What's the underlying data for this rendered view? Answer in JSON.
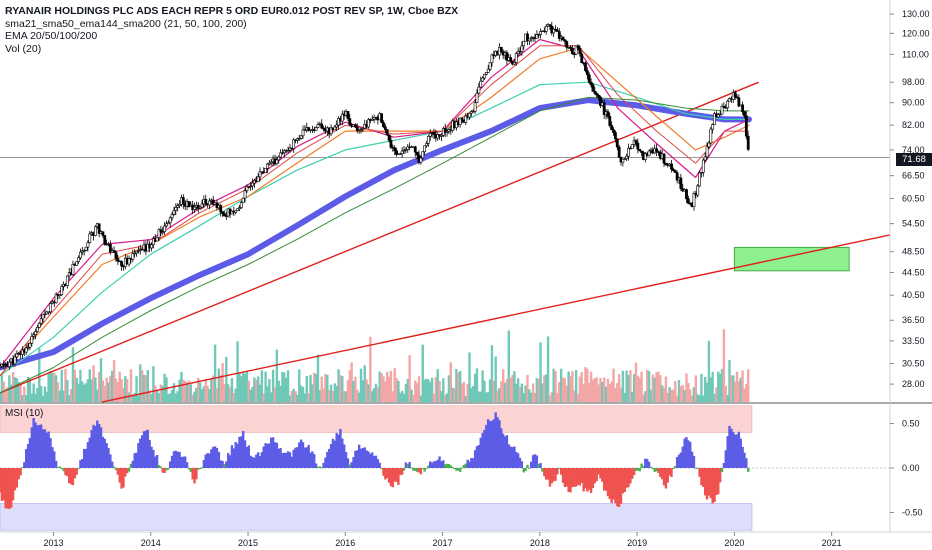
{
  "legend": {
    "title": "RYANAIR HOLDINGS PLC ADS EACH REPR 5 ORD EUR0.012 POST REV SP, 1W, Cboe BZX",
    "line2": "sma21_sma50_ema144_sma200 (21, 50, 100, 200)",
    "line3": "EMA 20/50/100/200",
    "line4": "Vol (20)"
  },
  "msi_label": "MSI (10)",
  "last_price": "71.68",
  "colors": {
    "candle": "#000000",
    "sma200": "#5b5be8",
    "trend_line": "#e0201b",
    "zone_fill": "#8ef08e",
    "volume_up": "#6fc8b8",
    "volume_down": "#f3a6a6",
    "msi_pos": "#5c5ce6",
    "msi_neg": "#ef5350",
    "msi_upper_band": "#fbd3d3",
    "msi_lower_band": "#dedefb"
  },
  "chart_data": [
    {
      "type": "candlestick",
      "x_ticks": [
        "2013",
        "2014",
        "2015",
        "2016",
        "2017",
        "2018",
        "2019",
        "2020",
        "2021"
      ],
      "y_ticks": [
        28.0,
        30.5,
        33.5,
        36.5,
        40.5,
        44.5,
        48.5,
        54.5,
        60.5,
        66.5,
        74.0,
        82.0,
        90.0,
        98.0,
        110.0,
        120.0,
        130.0
      ],
      "y_tick_labels": [
        "28.00",
        "30.50",
        "33.50",
        "36.50",
        "40.50",
        "44.50",
        "48.50",
        "54.50",
        "60.50",
        "66.50",
        "74.00",
        "82.00",
        "90.00",
        "98.00",
        "110.00",
        "120.00",
        "130.00"
      ],
      "y_scale": "log",
      "ylim": [
        26,
        135
      ],
      "xlim": [
        2012.45,
        2021.6
      ],
      "close_path": [
        [
          2012.45,
          30
        ],
        [
          2012.6,
          31
        ],
        [
          2012.75,
          33
        ],
        [
          2012.9,
          37
        ],
        [
          2013.1,
          42
        ],
        [
          2013.3,
          49
        ],
        [
          2013.45,
          54
        ],
        [
          2013.55,
          50
        ],
        [
          2013.7,
          46
        ],
        [
          2013.85,
          48
        ],
        [
          2014.0,
          50
        ],
        [
          2014.15,
          54
        ],
        [
          2014.3,
          60
        ],
        [
          2014.45,
          58
        ],
        [
          2014.6,
          60
        ],
        [
          2014.75,
          57
        ],
        [
          2014.9,
          58
        ],
        [
          2015.0,
          64
        ],
        [
          2015.1,
          66
        ],
        [
          2015.25,
          70
        ],
        [
          2015.4,
          74
        ],
        [
          2015.55,
          79
        ],
        [
          2015.7,
          82
        ],
        [
          2015.85,
          80
        ],
        [
          2016.0,
          86
        ],
        [
          2016.1,
          80
        ],
        [
          2016.2,
          82
        ],
        [
          2016.35,
          85
        ],
        [
          2016.45,
          76
        ],
        [
          2016.55,
          72
        ],
        [
          2016.7,
          76
        ],
        [
          2016.75,
          70
        ],
        [
          2016.85,
          78
        ],
        [
          2017.0,
          80
        ],
        [
          2017.1,
          82
        ],
        [
          2017.2,
          84
        ],
        [
          2017.3,
          86
        ],
        [
          2017.4,
          99
        ],
        [
          2017.5,
          108
        ],
        [
          2017.6,
          113
        ],
        [
          2017.7,
          106
        ],
        [
          2017.8,
          112
        ],
        [
          2017.85,
          118
        ],
        [
          2017.95,
          116
        ],
        [
          2018.0,
          120
        ],
        [
          2018.1,
          123
        ],
        [
          2018.2,
          119
        ],
        [
          2018.3,
          112
        ],
        [
          2018.4,
          112
        ],
        [
          2018.5,
          98
        ],
        [
          2018.6,
          92
        ],
        [
          2018.7,
          84
        ],
        [
          2018.8,
          74
        ],
        [
          2018.85,
          70
        ],
        [
          2018.95,
          77
        ],
        [
          2019.05,
          72
        ],
        [
          2019.15,
          74
        ],
        [
          2019.25,
          72
        ],
        [
          2019.35,
          68
        ],
        [
          2019.45,
          64
        ],
        [
          2019.55,
          58
        ],
        [
          2019.6,
          62
        ],
        [
          2019.7,
          72
        ],
        [
          2019.8,
          86
        ],
        [
          2019.9,
          88
        ],
        [
          2020.0,
          93
        ],
        [
          2020.05,
          90
        ],
        [
          2020.1,
          86
        ],
        [
          2020.15,
          71.68
        ]
      ],
      "ma_lines": [
        {
          "key": "sma200",
          "color": "#5b5be8",
          "width": 6,
          "points": [
            [
              2012.45,
              30
            ],
            [
              2013.0,
              32
            ],
            [
              2013.5,
              36
            ],
            [
              2014.0,
              40
            ],
            [
              2014.5,
              44
            ],
            [
              2015.0,
              48
            ],
            [
              2015.5,
              54
            ],
            [
              2016.0,
              61
            ],
            [
              2016.5,
              68
            ],
            [
              2017.0,
              74
            ],
            [
              2017.5,
              80
            ],
            [
              2018.0,
              88
            ],
            [
              2018.5,
              91
            ],
            [
              2019.0,
              89
            ],
            [
              2019.5,
              86
            ],
            [
              2019.9,
              84
            ],
            [
              2020.15,
              84
            ]
          ]
        },
        {
          "key": "ema144",
          "color": "#3ecfaf",
          "width": 1.2,
          "points": [
            [
              2012.45,
              29
            ],
            [
              2013.0,
              34
            ],
            [
              2013.5,
              41
            ],
            [
              2014.0,
              48
            ],
            [
              2014.5,
              54
            ],
            [
              2015.0,
              61
            ],
            [
              2015.5,
              68
            ],
            [
              2016.0,
              74
            ],
            [
              2016.5,
              77
            ],
            [
              2017.0,
              80
            ],
            [
              2017.5,
              88
            ],
            [
              2018.0,
              97
            ],
            [
              2018.5,
              98
            ],
            [
              2019.0,
              92
            ],
            [
              2019.5,
              86
            ],
            [
              2019.9,
              84
            ],
            [
              2020.15,
              84
            ]
          ]
        },
        {
          "key": "sma50",
          "color": "#f07c28",
          "width": 1.2,
          "points": [
            [
              2012.45,
              29
            ],
            [
              2013.0,
              37
            ],
            [
              2013.5,
              46
            ],
            [
              2014.0,
              50
            ],
            [
              2014.5,
              56
            ],
            [
              2015.0,
              61
            ],
            [
              2015.5,
              70
            ],
            [
              2016.0,
              80
            ],
            [
              2016.5,
              80
            ],
            [
              2017.0,
              80
            ],
            [
              2017.5,
              92
            ],
            [
              2018.0,
              108
            ],
            [
              2018.4,
              113
            ],
            [
              2018.8,
              98
            ],
            [
              2019.2,
              85
            ],
            [
              2019.6,
              74
            ],
            [
              2019.9,
              78
            ],
            [
              2020.15,
              82
            ]
          ]
        },
        {
          "key": "sma21",
          "color": "#d81c8c",
          "width": 1.2,
          "points": [
            [
              2012.45,
              30
            ],
            [
              2013.0,
              40
            ],
            [
              2013.5,
              50
            ],
            [
              2014.0,
              51
            ],
            [
              2014.5,
              58
            ],
            [
              2015.0,
              64
            ],
            [
              2015.5,
              75
            ],
            [
              2016.0,
              83
            ],
            [
              2016.5,
              78
            ],
            [
              2017.0,
              80
            ],
            [
              2017.5,
              100
            ],
            [
              2018.0,
              117
            ],
            [
              2018.4,
              112
            ],
            [
              2018.8,
              88
            ],
            [
              2019.2,
              76
            ],
            [
              2019.6,
              66
            ],
            [
              2019.9,
              80
            ],
            [
              2020.15,
              84
            ]
          ]
        },
        {
          "key": "ema_red",
          "color": "#e04848",
          "width": 1,
          "points": [
            [
              2012.45,
              29
            ],
            [
              2013.0,
              38
            ],
            [
              2013.5,
              48
            ],
            [
              2014.0,
              50
            ],
            [
              2014.5,
              57
            ],
            [
              2015.0,
              63
            ],
            [
              2015.5,
              73
            ],
            [
              2016.0,
              82
            ],
            [
              2016.5,
              79
            ],
            [
              2017.0,
              80
            ],
            [
              2017.5,
              97
            ],
            [
              2018.0,
              114
            ],
            [
              2018.4,
              114
            ],
            [
              2018.8,
              93
            ],
            [
              2019.2,
              80
            ],
            [
              2019.6,
              70
            ],
            [
              2019.9,
              80
            ],
            [
              2020.15,
              80
            ]
          ]
        },
        {
          "key": "ema_green",
          "color": "#3a8a3a",
          "width": 1,
          "points": [
            [
              2012.45,
              27
            ],
            [
              2013.0,
              30
            ],
            [
              2013.5,
              34
            ],
            [
              2014.0,
              38
            ],
            [
              2014.5,
              42
            ],
            [
              2015.0,
              46
            ],
            [
              2015.5,
              51
            ],
            [
              2016.0,
              57
            ],
            [
              2016.5,
              63
            ],
            [
              2017.0,
              70
            ],
            [
              2017.5,
              78
            ],
            [
              2018.0,
              87
            ],
            [
              2018.5,
              92
            ],
            [
              2019.0,
              91
            ],
            [
              2019.5,
              88
            ],
            [
              2019.9,
              87
            ],
            [
              2020.15,
              87
            ]
          ]
        }
      ],
      "trendlines": [
        {
          "from": [
            2012.45,
            27
          ],
          "to": [
            2020.25,
            98
          ]
        },
        {
          "from": [
            2013.5,
            26
          ],
          "to": [
            2021.6,
            52
          ]
        }
      ],
      "zones": [
        {
          "x": [
            2020.0,
            2021.18
          ],
          "y": [
            44.8,
            49.4
          ]
        }
      ],
      "last_price": 71.68
    },
    {
      "type": "bar",
      "title": "MSI (10)",
      "y_ticks": [
        0.5,
        0.0,
        -0.5
      ],
      "y_tick_labels": [
        "0.50",
        "0.00",
        "-0.50"
      ],
      "ylim": [
        -0.72,
        0.72
      ],
      "upper_band": [
        0.4,
        0.7
      ],
      "lower_band": [
        -0.7,
        -0.4
      ],
      "wave": [
        [
          2012.45,
          -0.3
        ],
        [
          2012.55,
          -0.5
        ],
        [
          2012.65,
          -0.1
        ],
        [
          2012.75,
          0.3
        ],
        [
          2012.8,
          0.55
        ],
        [
          2012.95,
          0.4
        ],
        [
          2013.05,
          0.0
        ],
        [
          2013.2,
          -0.2
        ],
        [
          2013.35,
          0.3
        ],
        [
          2013.45,
          0.55
        ],
        [
          2013.6,
          0.1
        ],
        [
          2013.7,
          -0.25
        ],
        [
          2013.85,
          0.2
        ],
        [
          2013.95,
          0.45
        ],
        [
          2014.05,
          0.15
        ],
        [
          2014.15,
          -0.1
        ],
        [
          2014.25,
          0.2
        ],
        [
          2014.35,
          0.1
        ],
        [
          2014.45,
          -0.15
        ],
        [
          2014.55,
          0.1
        ],
        [
          2014.65,
          0.25
        ],
        [
          2014.75,
          0.05
        ],
        [
          2014.85,
          0.25
        ],
        [
          2014.95,
          0.38
        ],
        [
          2015.05,
          0.1
        ],
        [
          2015.15,
          0.2
        ],
        [
          2015.25,
          0.35
        ],
        [
          2015.35,
          0.2
        ],
        [
          2015.45,
          0.15
        ],
        [
          2015.55,
          0.3
        ],
        [
          2015.65,
          0.2
        ],
        [
          2015.75,
          -0.05
        ],
        [
          2015.85,
          0.3
        ],
        [
          2015.95,
          0.4
        ],
        [
          2016.05,
          0.05
        ],
        [
          2016.15,
          0.25
        ],
        [
          2016.25,
          0.2
        ],
        [
          2016.35,
          0.05
        ],
        [
          2016.45,
          -0.2
        ],
        [
          2016.55,
          -0.15
        ],
        [
          2016.65,
          0.1
        ],
        [
          2016.75,
          -0.1
        ],
        [
          2016.85,
          0.05
        ],
        [
          2016.95,
          0.1
        ],
        [
          2017.05,
          0.05
        ],
        [
          2017.15,
          -0.05
        ],
        [
          2017.25,
          0.05
        ],
        [
          2017.35,
          0.2
        ],
        [
          2017.45,
          0.5
        ],
        [
          2017.55,
          0.6
        ],
        [
          2017.65,
          0.35
        ],
        [
          2017.75,
          0.2
        ],
        [
          2017.85,
          -0.05
        ],
        [
          2017.95,
          0.15
        ],
        [
          2018.0,
          0.05
        ],
        [
          2018.1,
          -0.2
        ],
        [
          2018.2,
          -0.05
        ],
        [
          2018.3,
          -0.3
        ],
        [
          2018.4,
          -0.15
        ],
        [
          2018.5,
          -0.3
        ],
        [
          2018.6,
          -0.1
        ],
        [
          2018.7,
          -0.3
        ],
        [
          2018.8,
          -0.45
        ],
        [
          2018.9,
          -0.2
        ],
        [
          2019.0,
          -0.05
        ],
        [
          2019.1,
          0.1
        ],
        [
          2019.2,
          -0.05
        ],
        [
          2019.3,
          -0.2
        ],
        [
          2019.4,
          0.05
        ],
        [
          2019.5,
          0.35
        ],
        [
          2019.55,
          0.3
        ],
        [
          2019.6,
          0.05
        ],
        [
          2019.7,
          -0.3
        ],
        [
          2019.8,
          -0.4
        ],
        [
          2019.85,
          -0.2
        ],
        [
          2019.9,
          0.15
        ],
        [
          2019.95,
          0.48
        ],
        [
          2020.0,
          0.35
        ],
        [
          2020.05,
          0.4
        ],
        [
          2020.1,
          0.2
        ],
        [
          2020.15,
          -0.05
        ]
      ]
    }
  ]
}
